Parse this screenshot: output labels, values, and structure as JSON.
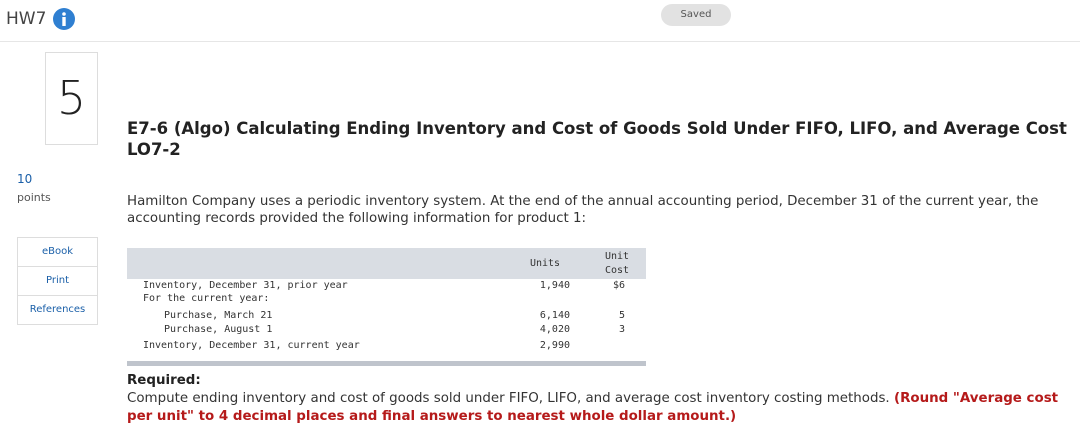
{
  "header": {
    "assignment": "HW7",
    "status": "Saved"
  },
  "question": {
    "number": "5",
    "points_value": "10",
    "points_label": "points",
    "tools": [
      "eBook",
      "Print",
      "References"
    ],
    "title": "E7-6 (Algo) Calculating Ending Inventory and Cost of Goods Sold Under FIFO, LIFO, and Average Cost LO7-2",
    "intro": "Hamilton Company uses a periodic inventory system. At the end of the annual accounting period, December 31 of the current year, the accounting records provided the following information for product 1:",
    "table": {
      "columns": [
        "Units",
        "Unit Cost"
      ],
      "rows": [
        {
          "label": "Inventory, December 31, prior year",
          "units": "1,940",
          "unit_cost": "$6"
        },
        {
          "label": "For the current year:"
        },
        {
          "label": "Purchase, March 21",
          "units": "6,140",
          "unit_cost": "5"
        },
        {
          "label": "Purchase, August 1",
          "units": "4,020",
          "unit_cost": "3"
        },
        {
          "label": "Inventory, December 31, current year",
          "units": "2,990"
        }
      ]
    },
    "required_heading": "Required:",
    "required_text": "Compute ending inventory and cost of goods sold under FIFO, LIFO, and average cost inventory costing methods.",
    "required_note": "(Round \"Average cost per unit\" to 4 decimal places and final answers to nearest whole dollar amount.)"
  }
}
